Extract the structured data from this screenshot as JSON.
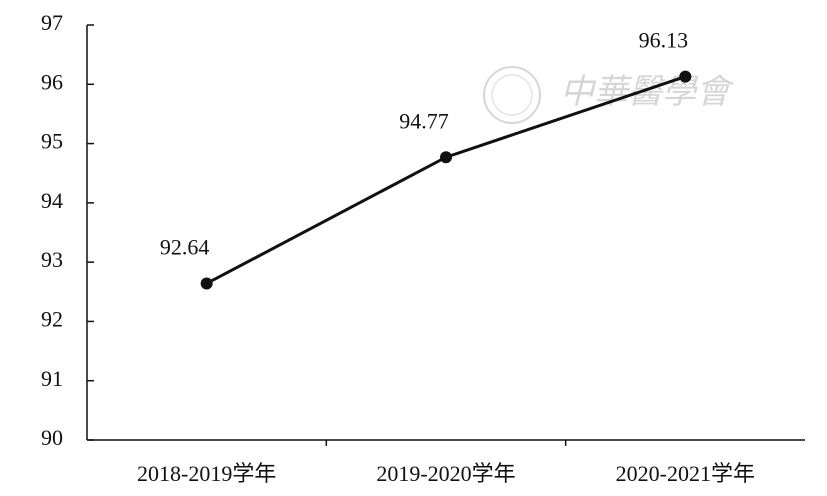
{
  "chart_data": {
    "type": "line",
    "categories": [
      "2018-2019学年",
      "2019-2020学年",
      "2020-2021学年"
    ],
    "values": [
      92.64,
      94.77,
      96.13
    ],
    "color": "#111111",
    "ylim": [
      90,
      97
    ],
    "yticks": [
      90,
      91,
      92,
      93,
      94,
      95,
      96,
      97
    ],
    "grid": false,
    "watermark": "中華醫學會"
  }
}
